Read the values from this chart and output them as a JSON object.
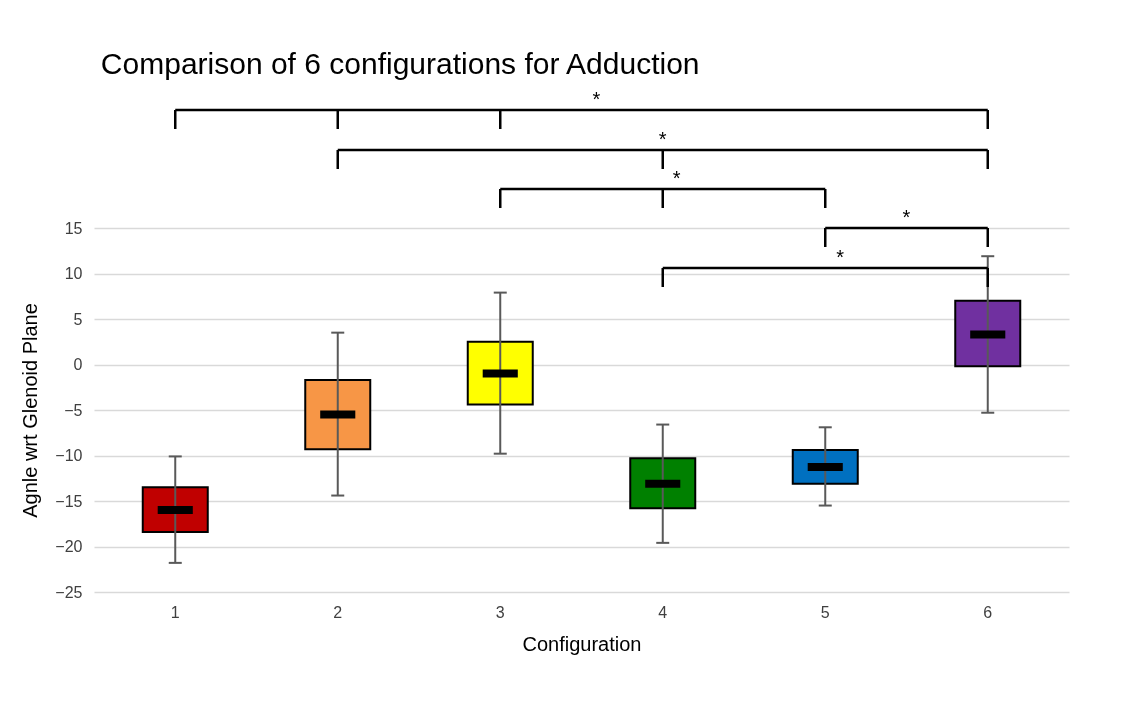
{
  "chart_data": {
    "type": "box",
    "title": "Comparison of 6 configurations for Adduction",
    "xlabel": "Configuration",
    "ylabel": "Agnle wrt Glenoid Plane",
    "categories": [
      "1",
      "2",
      "3",
      "4",
      "5",
      "6"
    ],
    "colors": [
      "#c00000",
      "#f79646",
      "#ffff00",
      "#008000",
      "#0070c0",
      "#7030a0"
    ],
    "boxes": [
      {
        "low": -21.8,
        "q1": -18.4,
        "median": -16.0,
        "q3": -13.5,
        "high": -10.1
      },
      {
        "low": -14.4,
        "q1": -9.3,
        "median": -5.5,
        "q3": -1.7,
        "high": 3.5
      },
      {
        "low": -9.8,
        "q1": -4.4,
        "median": -1.0,
        "q3": 2.5,
        "high": 7.9
      },
      {
        "low": -19.6,
        "q1": -15.8,
        "median": -13.1,
        "q3": -10.3,
        "high": -6.6
      },
      {
        "low": -15.5,
        "q1": -13.1,
        "median": -11.25,
        "q3": -9.4,
        "high": -6.9
      },
      {
        "low": -5.3,
        "q1": -0.2,
        "median": 3.3,
        "q3": 7.0,
        "high": 11.9
      }
    ],
    "ylim": [
      -25,
      15
    ],
    "yticks": [
      -25,
      -20,
      -15,
      -10,
      -5,
      0,
      5,
      10,
      15
    ],
    "grid": "y",
    "annotations": [
      "*",
      "*",
      "*",
      "*",
      "*"
    ]
  }
}
